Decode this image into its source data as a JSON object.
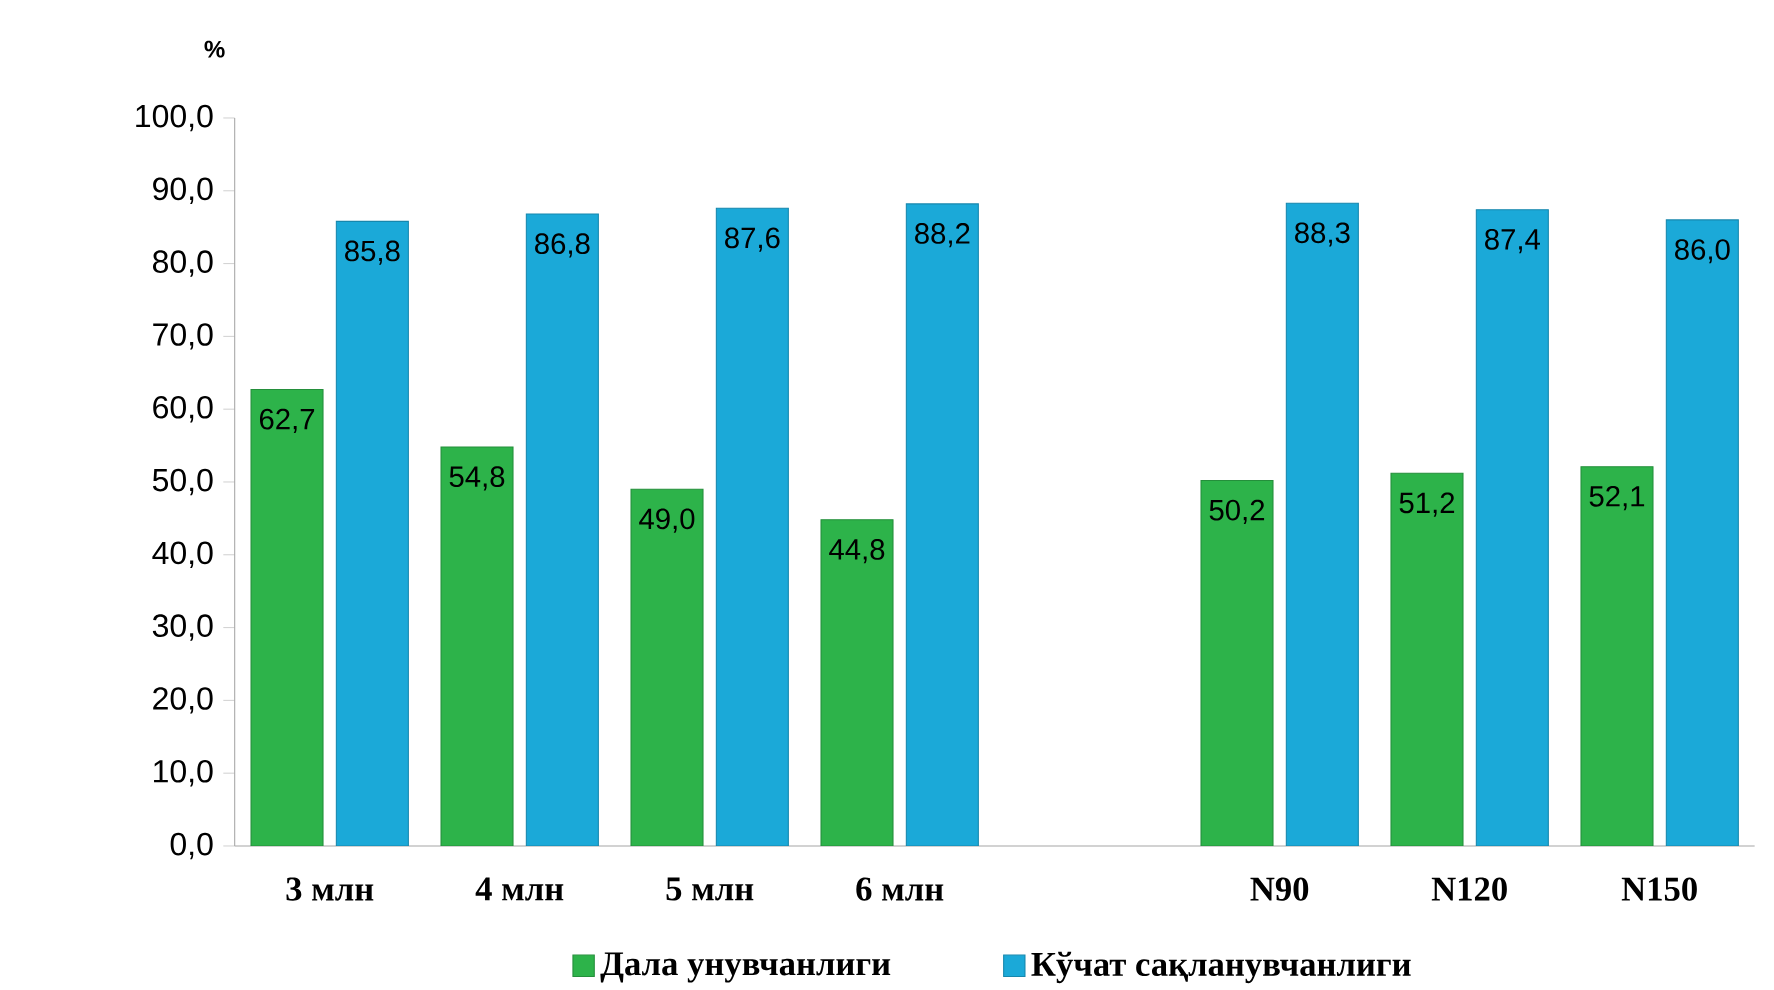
{
  "chart_data": {
    "type": "bar",
    "ylabel": "%",
    "categories": [
      "3 млн",
      "4 млн",
      "5 млн",
      "6 млн",
      null,
      "N90",
      "N120",
      "N150"
    ],
    "series": [
      {
        "name": "Дала унувчанлиги",
        "color": "#2db34a",
        "values": [
          62.7,
          54.8,
          49.0,
          44.8,
          null,
          50.2,
          51.2,
          52.1
        ],
        "value_labels": [
          "62,7",
          "54,8",
          "49,0",
          "44,8",
          null,
          "50,2",
          "51,2",
          "52,1"
        ]
      },
      {
        "name": "Кўчат сақланувчанлиги",
        "color": "#1ba9d8",
        "values": [
          85.8,
          86.8,
          87.6,
          88.2,
          null,
          88.3,
          87.4,
          86.0
        ],
        "value_labels": [
          "85,8",
          "86,8",
          "87,6",
          "88,2",
          null,
          "88,3",
          "87,4",
          "86,0"
        ]
      }
    ],
    "ylim": [
      0,
      100
    ],
    "yticks": [
      {
        "value": 0,
        "label": "0,0"
      },
      {
        "value": 10,
        "label": "10,0"
      },
      {
        "value": 20,
        "label": "20,0"
      },
      {
        "value": 30,
        "label": "30,0"
      },
      {
        "value": 40,
        "label": "40,0"
      },
      {
        "value": 50,
        "label": "50,0"
      },
      {
        "value": 60,
        "label": "60,0"
      },
      {
        "value": 70,
        "label": "70,0"
      },
      {
        "value": 80,
        "label": "80,0"
      },
      {
        "value": 90,
        "label": "90,0"
      },
      {
        "value": 100,
        "label": "100,0"
      }
    ],
    "legend": "bottom",
    "grid": false
  }
}
